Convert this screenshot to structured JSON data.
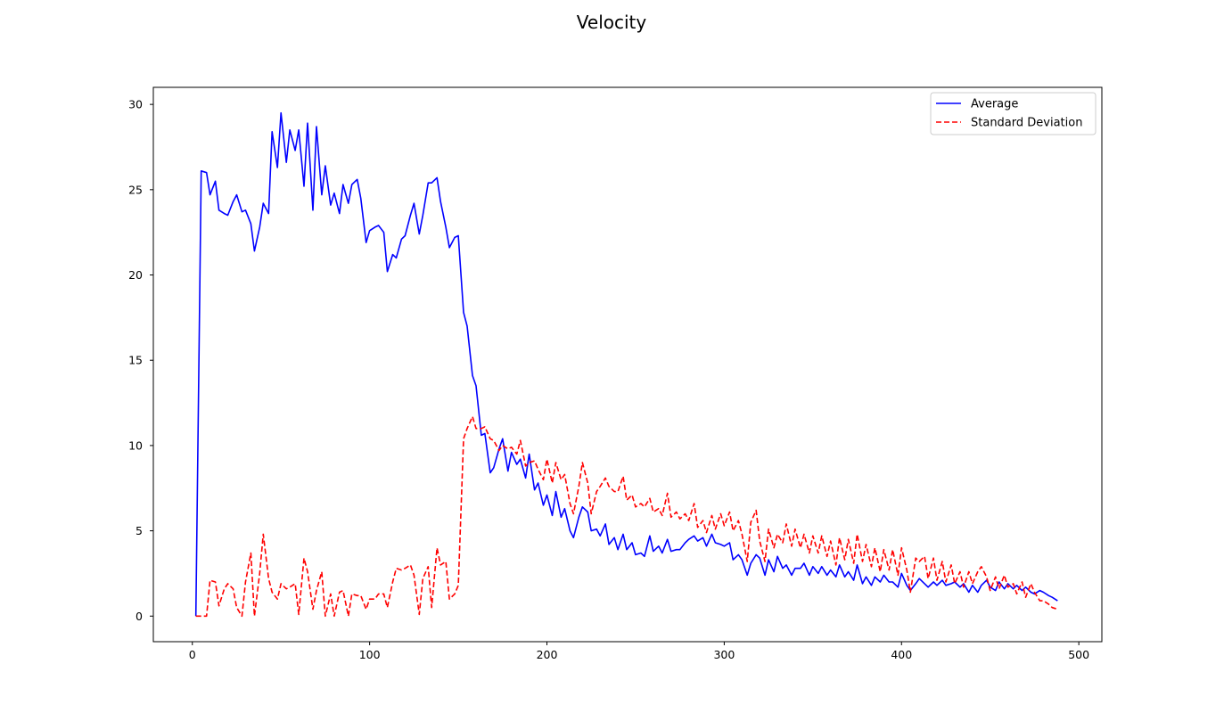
{
  "chart_data": {
    "type": "line",
    "title": "Velocity",
    "xlabel": "",
    "ylabel": "",
    "xlim": [
      -22,
      513
    ],
    "ylim": [
      -1.5,
      31
    ],
    "xticks": [
      0,
      100,
      200,
      300,
      400,
      500
    ],
    "yticks": [
      0,
      5,
      10,
      15,
      20,
      25,
      30
    ],
    "grid": false,
    "legend_position": "top-right",
    "series": [
      {
        "name": "Average",
        "color": "#0000ff",
        "style": "solid",
        "x": [
          2,
          5,
          8,
          10,
          13,
          15,
          18,
          20,
          23,
          25,
          28,
          30,
          33,
          35,
          38,
          40,
          43,
          45,
          48,
          50,
          53,
          55,
          58,
          60,
          63,
          65,
          68,
          70,
          73,
          75,
          78,
          80,
          83,
          85,
          88,
          90,
          93,
          95,
          98,
          100,
          103,
          105,
          108,
          110,
          113,
          115,
          118,
          120,
          123,
          125,
          128,
          130,
          133,
          135,
          138,
          140,
          143,
          145,
          148,
          150,
          153,
          155,
          158,
          160,
          163,
          165,
          168,
          170,
          173,
          175,
          178,
          180,
          183,
          185,
          188,
          190,
          193,
          195,
          198,
          200,
          203,
          205,
          208,
          210,
          213,
          215,
          218,
          220,
          223,
          225,
          228,
          230,
          233,
          235,
          238,
          240,
          243,
          245,
          248,
          250,
          253,
          255,
          258,
          260,
          263,
          265,
          268,
          270,
          273,
          275,
          278,
          280,
          283,
          285,
          288,
          290,
          293,
          295,
          298,
          300,
          303,
          305,
          308,
          310,
          313,
          315,
          318,
          320,
          323,
          325,
          328,
          330,
          333,
          335,
          338,
          340,
          343,
          345,
          348,
          350,
          353,
          355,
          358,
          360,
          363,
          365,
          368,
          370,
          373,
          375,
          378,
          380,
          383,
          385,
          388,
          390,
          393,
          395,
          398,
          400,
          403,
          405,
          408,
          410,
          413,
          415,
          418,
          420,
          423,
          425,
          428,
          430,
          433,
          435,
          438,
          440,
          443,
          445,
          448,
          450,
          453,
          455,
          458,
          460,
          463,
          465,
          468,
          470,
          473,
          475,
          478,
          480,
          483,
          485,
          488
        ],
        "values": [
          0,
          26.1,
          26.0,
          24.7,
          25.5,
          23.8,
          23.6,
          23.5,
          24.3,
          24.7,
          23.7,
          23.8,
          23.0,
          21.4,
          22.8,
          24.2,
          23.6,
          28.4,
          26.3,
          29.5,
          26.6,
          28.5,
          27.3,
          28.5,
          25.2,
          28.9,
          23.8,
          28.7,
          24.7,
          26.4,
          24.1,
          24.8,
          23.6,
          25.3,
          24.2,
          25.3,
          25.6,
          24.5,
          21.9,
          22.6,
          22.8,
          22.9,
          22.5,
          20.2,
          21.2,
          21.0,
          22.1,
          22.3,
          23.5,
          24.2,
          22.4,
          23.5,
          25.4,
          25.4,
          25.7,
          24.3,
          22.8,
          21.6,
          22.2,
          22.3,
          17.8,
          17.0,
          14.1,
          13.5,
          10.6,
          10.7,
          8.4,
          8.7,
          9.8,
          10.4,
          8.5,
          9.6,
          8.9,
          9.2,
          8.1,
          9.5,
          7.4,
          7.8,
          6.5,
          7.1,
          5.9,
          7.3,
          5.8,
          6.3,
          5.0,
          4.6,
          5.8,
          6.4,
          6.1,
          5.0,
          5.1,
          4.7,
          5.4,
          4.2,
          4.6,
          3.9,
          4.8,
          3.9,
          4.3,
          3.6,
          3.7,
          3.5,
          4.7,
          3.8,
          4.1,
          3.7,
          4.5,
          3.8,
          3.9,
          3.9,
          4.3,
          4.5,
          4.7,
          4.4,
          4.6,
          4.1,
          4.8,
          4.3,
          4.2,
          4.1,
          4.3,
          3.3,
          3.6,
          3.3,
          2.4,
          3.1,
          3.6,
          3.4,
          2.4,
          3.3,
          2.6,
          3.5,
          2.8,
          3.0,
          2.4,
          2.8,
          2.8,
          3.1,
          2.4,
          2.9,
          2.5,
          2.9,
          2.4,
          2.7,
          2.3,
          3.0,
          2.3,
          2.6,
          2.1,
          3.0,
          1.9,
          2.3,
          1.8,
          2.3,
          2.0,
          2.4,
          2.0,
          2.0,
          1.7,
          2.5,
          1.8,
          1.5,
          1.9,
          2.2,
          1.9,
          1.7,
          2.0,
          1.8,
          2.1,
          1.8,
          1.9,
          2.0,
          1.7,
          1.9,
          1.4,
          1.8,
          1.4,
          1.8,
          2.1,
          1.7,
          1.5,
          2.0,
          1.6,
          1.9,
          1.6,
          1.8,
          1.5,
          1.7,
          1.4,
          1.3,
          1.5,
          1.4,
          1.2,
          1.1,
          0.9
        ]
      },
      {
        "name": "Standard Deviation",
        "color": "#ff0000",
        "style": "dashed",
        "x": [
          2,
          5,
          8,
          10,
          13,
          15,
          18,
          20,
          23,
          25,
          28,
          30,
          33,
          35,
          38,
          40,
          43,
          45,
          48,
          50,
          53,
          55,
          58,
          60,
          63,
          65,
          68,
          70,
          73,
          75,
          78,
          80,
          83,
          85,
          88,
          90,
          93,
          95,
          98,
          100,
          103,
          105,
          108,
          110,
          113,
          115,
          118,
          120,
          123,
          125,
          128,
          130,
          133,
          135,
          138,
          140,
          143,
          145,
          148,
          150,
          153,
          155,
          158,
          160,
          163,
          165,
          168,
          170,
          173,
          175,
          178,
          180,
          183,
          185,
          188,
          190,
          193,
          195,
          198,
          200,
          203,
          205,
          208,
          210,
          213,
          215,
          218,
          220,
          223,
          225,
          228,
          230,
          233,
          235,
          238,
          240,
          243,
          245,
          248,
          250,
          253,
          255,
          258,
          260,
          263,
          265,
          268,
          270,
          273,
          275,
          278,
          280,
          283,
          285,
          288,
          290,
          293,
          295,
          298,
          300,
          303,
          305,
          308,
          310,
          313,
          315,
          318,
          320,
          323,
          325,
          328,
          330,
          333,
          335,
          338,
          340,
          343,
          345,
          348,
          350,
          353,
          355,
          358,
          360,
          363,
          365,
          368,
          370,
          373,
          375,
          378,
          380,
          383,
          385,
          388,
          390,
          393,
          395,
          398,
          400,
          403,
          405,
          408,
          410,
          413,
          415,
          418,
          420,
          423,
          425,
          428,
          430,
          433,
          435,
          438,
          440,
          443,
          445,
          448,
          450,
          453,
          455,
          458,
          460,
          463,
          465,
          468,
          470,
          473,
          475,
          478,
          480,
          483,
          485,
          488
        ],
        "values": [
          0,
          0,
          0,
          2.1,
          2.0,
          0.6,
          1.6,
          1.9,
          1.6,
          0.5,
          0,
          2.0,
          3.7,
          0,
          2.5,
          4.8,
          2.2,
          1.4,
          1.0,
          1.9,
          1.6,
          1.7,
          1.9,
          0.1,
          3.4,
          2.6,
          0.4,
          1.5,
          2.6,
          0,
          1.3,
          0,
          1.4,
          1.5,
          0,
          1.3,
          1.2,
          1.2,
          0.4,
          1.0,
          1.0,
          1.3,
          1.3,
          0.5,
          2.0,
          2.8,
          2.7,
          2.8,
          3.0,
          2.4,
          0.1,
          2.2,
          2.9,
          0.5,
          4.0,
          3.0,
          3.2,
          1.0,
          1.3,
          1.8,
          10.4,
          11.0,
          11.7,
          11.0,
          11.0,
          11.1,
          10.4,
          10.3,
          9.7,
          10.0,
          9.8,
          9.9,
          9.5,
          10.3,
          8.8,
          9.0,
          9.1,
          8.6,
          8.0,
          9.2,
          7.8,
          9.0,
          8.0,
          8.3,
          6.6,
          6.0,
          7.6,
          9.0,
          7.8,
          6.0,
          7.3,
          7.6,
          8.1,
          7.6,
          7.3,
          7.3,
          8.2,
          6.8,
          7.1,
          6.4,
          6.6,
          6.4,
          6.9,
          6.1,
          6.3,
          5.9,
          7.2,
          5.8,
          6.1,
          5.7,
          6.0,
          5.6,
          6.6,
          5.2,
          5.6,
          4.9,
          5.9,
          5.1,
          6.0,
          5.3,
          6.1,
          5.0,
          5.6,
          4.8,
          3.2,
          5.5,
          6.2,
          4.4,
          3.2,
          5.1,
          4.0,
          4.8,
          4.3,
          5.4,
          4.1,
          5.1,
          4.0,
          4.8,
          3.7,
          4.7,
          3.7,
          4.7,
          3.5,
          4.4,
          3.0,
          4.6,
          3.3,
          4.5,
          3.1,
          4.8,
          3.2,
          4.2,
          2.9,
          4.0,
          2.6,
          3.9,
          2.7,
          3.9,
          2.4,
          4.0,
          2.7,
          1.4,
          3.4,
          3.2,
          3.5,
          2.2,
          3.4,
          2.1,
          3.2,
          2.0,
          3.0,
          1.9,
          2.6,
          1.7,
          2.6,
          1.9,
          2.6,
          2.9,
          2.3,
          1.5,
          2.3,
          1.6,
          2.4,
          1.7,
          1.9,
          1.3,
          2.0,
          1.1,
          1.9,
          1.4,
          0.9,
          0.9,
          0.7,
          0.5,
          0.4
        ]
      }
    ]
  }
}
